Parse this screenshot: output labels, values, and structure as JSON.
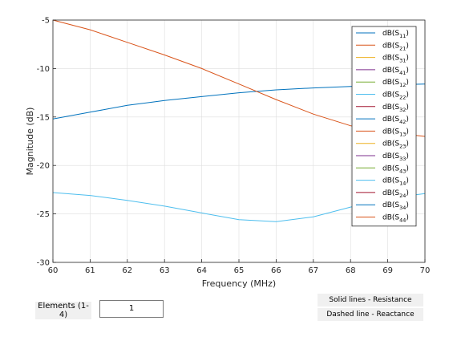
{
  "chart_data": {
    "type": "line",
    "xlabel": "Frequency (MHz)",
    "ylabel": "Magnitude (dB)",
    "xlim": [
      60,
      70
    ],
    "ylim": [
      -30,
      -5
    ],
    "xticks": [
      60,
      61,
      62,
      63,
      64,
      65,
      66,
      67,
      68,
      69,
      70
    ],
    "yticks": [
      -30,
      -25,
      -20,
      -15,
      -10,
      -5
    ],
    "grid": true,
    "legend_position": "top-right",
    "series": [
      {
        "name": "dB(S11)",
        "base": "dB(S",
        "sub": "11",
        "color": "#0072bd",
        "x": [
          60,
          61,
          62,
          63,
          64,
          65,
          66,
          67,
          68,
          69,
          70
        ],
        "y": [
          -15.2,
          -14.5,
          -13.8,
          -13.3,
          -12.9,
          -12.5,
          -12.2,
          -12.0,
          -11.85,
          -11.7,
          -11.6
        ]
      },
      {
        "name": "dB(S21)",
        "base": "dB(S",
        "sub": "21",
        "color": "#d95319",
        "x": [
          60,
          61,
          62,
          63,
          64,
          65,
          66,
          67,
          68,
          69,
          70
        ],
        "y": [
          -5.0,
          -6.0,
          -7.3,
          -8.6,
          -10.0,
          -11.6,
          -13.2,
          -14.7,
          -15.9,
          -16.6,
          -17.0
        ]
      },
      {
        "name": "dB(S31)",
        "base": "dB(S",
        "sub": "31",
        "color": "#edb120",
        "x": [],
        "y": []
      },
      {
        "name": "dB(S41)",
        "base": "dB(S",
        "sub": "41",
        "color": "#7e2f8e",
        "x": [],
        "y": []
      },
      {
        "name": "dB(S12)",
        "base": "dB(S",
        "sub": "12",
        "color": "#77ac30",
        "x": [],
        "y": []
      },
      {
        "name": "dB(S22)",
        "base": "dB(S",
        "sub": "22",
        "color": "#4dbeee",
        "x": [
          60,
          61,
          62,
          63,
          64,
          65,
          66,
          67,
          68,
          69,
          70
        ],
        "y": [
          -22.8,
          -23.1,
          -23.6,
          -24.2,
          -24.9,
          -25.6,
          -25.8,
          -25.3,
          -24.3,
          -23.4,
          -22.9
        ]
      },
      {
        "name": "dB(S32)",
        "base": "dB(S",
        "sub": "32",
        "color": "#a2142f",
        "x": [],
        "y": []
      },
      {
        "name": "dB(S42)",
        "base": "dB(S",
        "sub": "42",
        "color": "#0072bd",
        "x": [],
        "y": []
      },
      {
        "name": "dB(S13)",
        "base": "dB(S",
        "sub": "13",
        "color": "#d95319",
        "x": [],
        "y": []
      },
      {
        "name": "dB(S23)",
        "base": "dB(S",
        "sub": "23",
        "color": "#edb120",
        "x": [],
        "y": []
      },
      {
        "name": "dB(S33)",
        "base": "dB(S",
        "sub": "33",
        "color": "#7e2f8e",
        "x": [],
        "y": []
      },
      {
        "name": "dB(S43)",
        "base": "dB(S",
        "sub": "43",
        "color": "#77ac30",
        "x": [],
        "y": []
      },
      {
        "name": "dB(S14)",
        "base": "dB(S",
        "sub": "14",
        "color": "#4dbeee",
        "x": [],
        "y": []
      },
      {
        "name": "dB(S24)",
        "base": "dB(S",
        "sub": "24",
        "color": "#a2142f",
        "x": [],
        "y": []
      },
      {
        "name": "dB(S34)",
        "base": "dB(S",
        "sub": "34",
        "color": "#0072bd",
        "x": [],
        "y": []
      },
      {
        "name": "dB(S44)",
        "base": "dB(S",
        "sub": "44",
        "color": "#d95319",
        "x": [],
        "y": []
      }
    ]
  },
  "controls": {
    "elements_label": "Elements (1-4)",
    "elements_value": "1",
    "note_solid": "Solid lines - Resistance",
    "note_dashed": "Dashed line - Reactance"
  }
}
